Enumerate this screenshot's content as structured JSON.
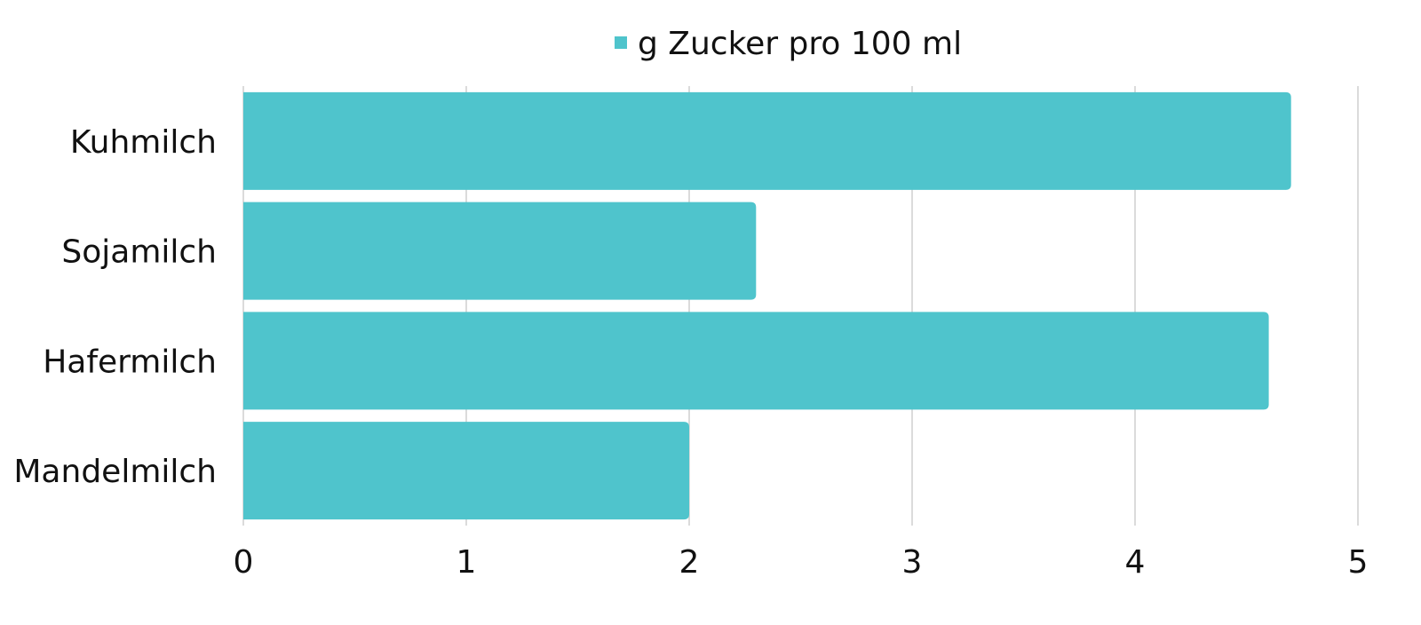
{
  "chart_data": {
    "type": "bar",
    "orientation": "horizontal",
    "categories": [
      "Kuhmilch",
      "Sojamilch",
      "Hafermilch",
      "Mandelmilch"
    ],
    "series": [
      {
        "name": "g Zucker pro 100 ml",
        "values": [
          4.7,
          2.3,
          4.6,
          2.0
        ],
        "color": "#4FC4CC"
      }
    ],
    "xlim": [
      0,
      5
    ],
    "xticks": [
      "0",
      "1",
      "2",
      "3",
      "4",
      "5"
    ],
    "grid": true,
    "legend_position": "top-center"
  }
}
